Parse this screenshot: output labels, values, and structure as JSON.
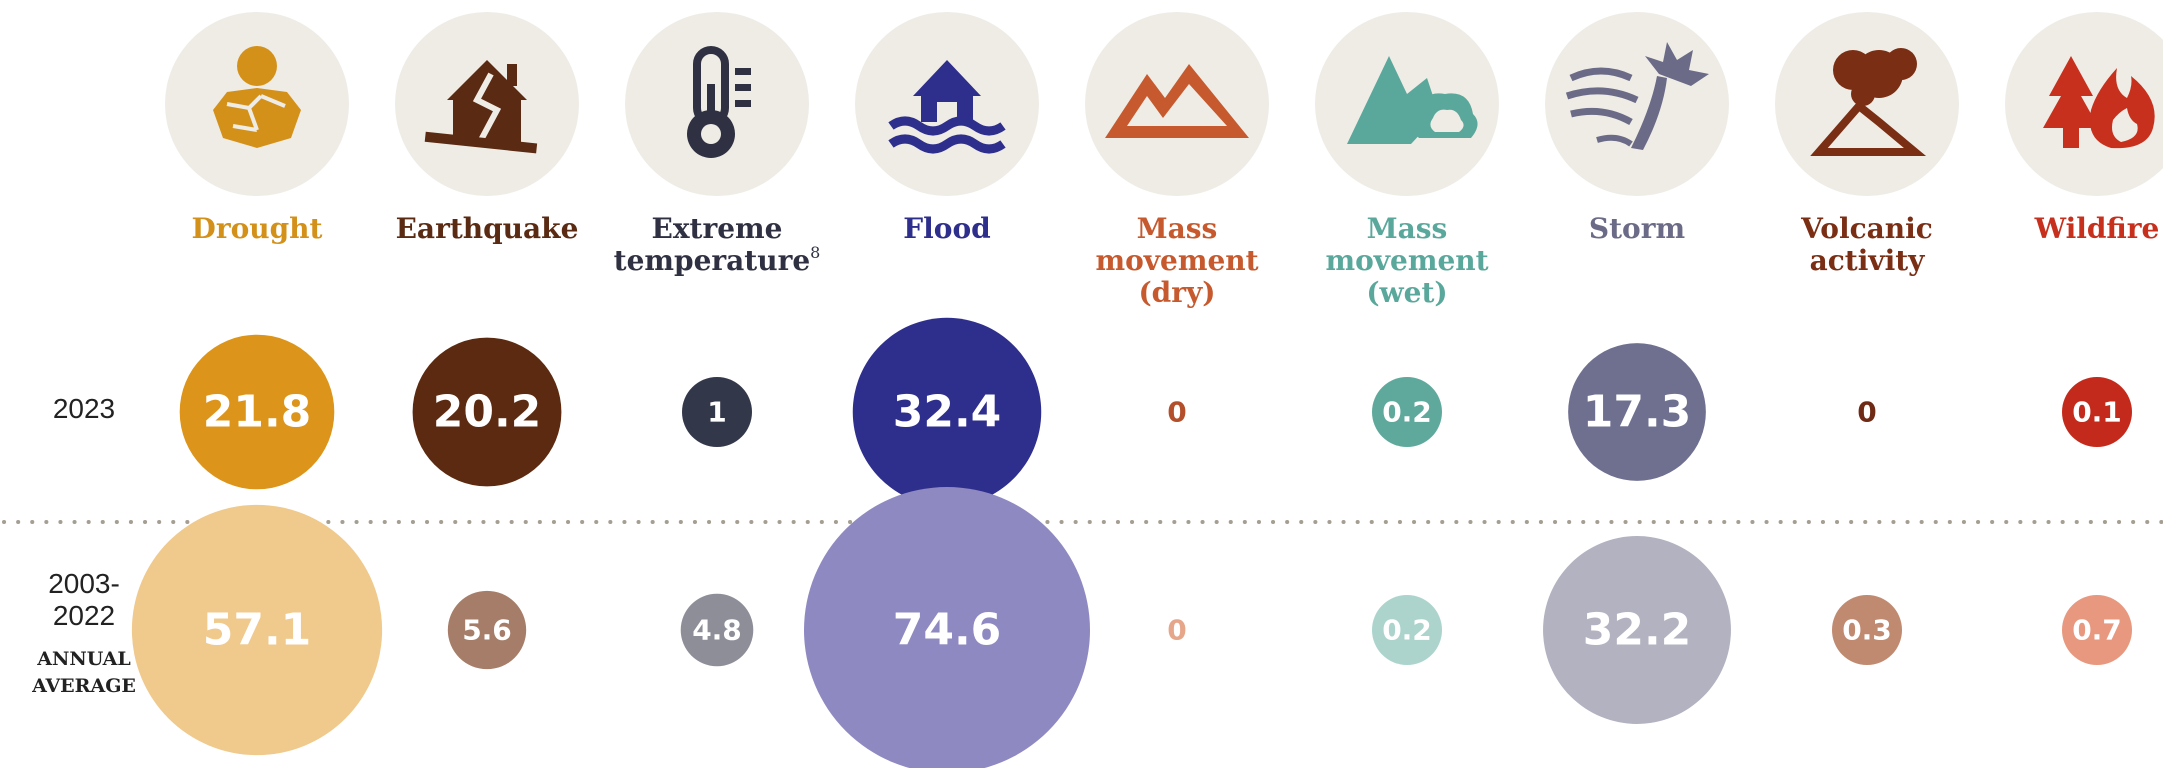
{
  "chart_data": {
    "type": "bubble",
    "title": "",
    "categories": [
      {
        "id": "drought",
        "label_lines": [
          "Drought"
        ],
        "footnote": "",
        "icon": "drought-icon"
      },
      {
        "id": "earthquake",
        "label_lines": [
          "Earthquake"
        ],
        "footnote": "",
        "icon": "earthquake-house-icon"
      },
      {
        "id": "extreme-temperature",
        "label_lines": [
          "Extreme",
          "temperature"
        ],
        "footnote": "8",
        "icon": "thermometer-icon"
      },
      {
        "id": "flood",
        "label_lines": [
          "Flood"
        ],
        "footnote": "",
        "icon": "flooded-house-icon"
      },
      {
        "id": "mass-movement-dry",
        "label_lines": [
          "Mass",
          "movement",
          "(dry)"
        ],
        "footnote": "",
        "icon": "mountain-icon"
      },
      {
        "id": "mass-movement-wet",
        "label_lines": [
          "Mass",
          "movement",
          "(wet)"
        ],
        "footnote": "",
        "icon": "mountain-rain-icon"
      },
      {
        "id": "storm",
        "label_lines": [
          "Storm"
        ],
        "footnote": "",
        "icon": "storm-wind-icon"
      },
      {
        "id": "volcanic-activity",
        "label_lines": [
          "Volcanic",
          "activity"
        ],
        "footnote": "",
        "icon": "volcano-icon"
      },
      {
        "id": "wildfire",
        "label_lines": [
          "Wildfire"
        ],
        "footnote": "",
        "icon": "wildfire-icon"
      }
    ],
    "label_colors": [
      "#d4911a",
      "#5a2a12",
      "#2f3142",
      "#2e2e8c",
      "#c65a2e",
      "#5aa89b",
      "#6b6b87",
      "#7a2e14",
      "#c8301e"
    ],
    "series": [
      {
        "name": "2023",
        "label_lines": [
          "2023"
        ],
        "sublabel_lines": [],
        "values": [
          21.8,
          20.2,
          1,
          32.4,
          0,
          0.2,
          17.3,
          0,
          0.1
        ],
        "value_labels": [
          "21.8",
          "20.2",
          "1",
          "32.4",
          "0",
          "0.2",
          "17.3",
          "0",
          "0.1"
        ],
        "colors": [
          "#dc951a",
          "#5c2a10",
          "#33374a",
          "#2e2e8c",
          "#b34f2a",
          "#5fa99c",
          "#6f7090",
          "#6e2a14",
          "#c42a1c"
        ]
      },
      {
        "name": "2003-2022 Annual average",
        "label_lines": [
          "2003-",
          "2022"
        ],
        "sublabel_lines": [
          "ANNUAL",
          "AVERAGE"
        ],
        "values": [
          57.1,
          5.6,
          4.8,
          74.6,
          0,
          0.2,
          32.2,
          0.3,
          0.7
        ],
        "value_labels": [
          "57.1",
          "5.6",
          "4.8",
          "74.6",
          "0",
          "0.2",
          "32.2",
          "0.3",
          "0.7"
        ],
        "colors": [
          "#f0c98c",
          "#a67d68",
          "#8e8e99",
          "#8f89c2",
          "#e6a68a",
          "#acd4cd",
          "#b2b2c0",
          "#c08a70",
          "#e8987e"
        ]
      }
    ],
    "legend": "none",
    "grid": false
  }
}
